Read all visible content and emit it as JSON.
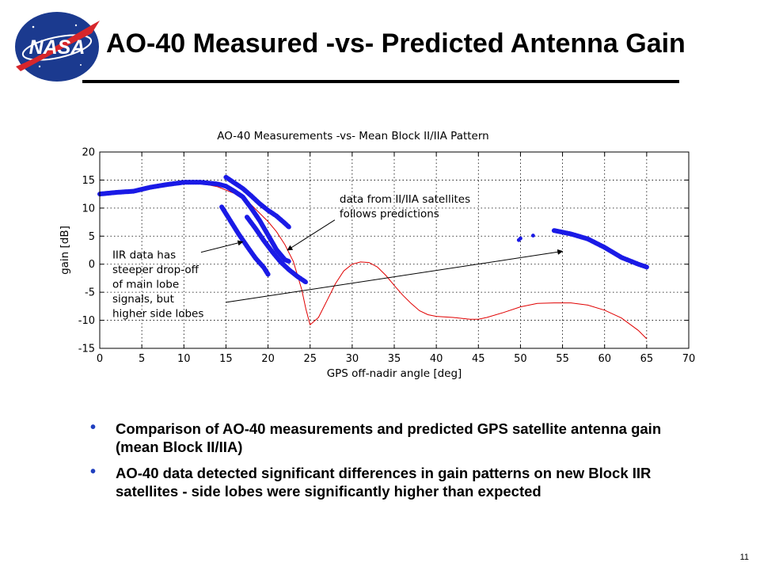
{
  "slide": {
    "logo_text": "NASA",
    "title": "AO-40 Measured -vs- Predicted Antenna Gain",
    "page_number": "11",
    "bullets": [
      "Comparison of AO-40 measurements and predicted GPS satellite antenna gain (mean Block II/IIA)",
      "AO-40 data detected significant differences in gain patterns on new Block IIR satellites - side lobes were significantly higher than expected"
    ],
    "colors": {
      "data": "#1a1ae6",
      "prediction": "#e00000",
      "bullet": "#1f3fbf"
    },
    "icons": {
      "logo": "nasa-meatball-logo"
    }
  },
  "chart_data": {
    "type": "scatter",
    "title": "AO-40 Measurements -vs- Mean Block II/IIA Pattern",
    "xlabel": "GPS off-nadir angle [deg]",
    "ylabel": "gain [dB]",
    "xlim": [
      0,
      70
    ],
    "ylim": [
      -15,
      20
    ],
    "xticks": [
      "0",
      "5",
      "10",
      "15",
      "20",
      "25",
      "30",
      "35",
      "40",
      "45",
      "50",
      "55",
      "60",
      "65",
      "70"
    ],
    "yticks": [
      "20",
      "15",
      "10",
      "5",
      "0",
      "-5",
      "-10",
      "-15"
    ],
    "grid": true,
    "series": [
      {
        "kind": "line",
        "color": "#e00000",
        "points": [
          [
            0,
            12.5
          ],
          [
            2,
            12.8
          ],
          [
            4,
            13.2
          ],
          [
            6,
            13.7
          ],
          [
            8,
            14.2
          ],
          [
            10,
            14.5
          ],
          [
            12,
            14.4
          ],
          [
            14,
            13.8
          ],
          [
            16,
            12.6
          ],
          [
            18,
            10.6
          ],
          [
            20,
            7.6
          ],
          [
            21,
            5.8
          ],
          [
            22,
            3.5
          ],
          [
            23,
            0.5
          ],
          [
            24,
            -4.5
          ],
          [
            24.5,
            -8
          ],
          [
            25,
            -10.8
          ],
          [
            26,
            -9.5
          ],
          [
            27,
            -6.5
          ],
          [
            28,
            -3.5
          ],
          [
            29,
            -1.2
          ],
          [
            30,
            0
          ],
          [
            31,
            0.4
          ],
          [
            32,
            0.3
          ],
          [
            33,
            -0.5
          ],
          [
            34,
            -2
          ],
          [
            35,
            -3.8
          ],
          [
            36,
            -5.5
          ],
          [
            37,
            -7
          ],
          [
            38,
            -8.3
          ],
          [
            39,
            -9
          ],
          [
            40,
            -9.3
          ],
          [
            42,
            -9.5
          ],
          [
            44,
            -9.8
          ],
          [
            45,
            -9.8
          ],
          [
            46,
            -9.5
          ],
          [
            48,
            -8.6
          ],
          [
            50,
            -7.6
          ],
          [
            52,
            -7
          ],
          [
            54,
            -6.9
          ],
          [
            56,
            -6.9
          ],
          [
            58,
            -7.3
          ],
          [
            60,
            -8.2
          ],
          [
            62,
            -9.6
          ],
          [
            64,
            -11.8
          ],
          [
            65,
            -13.3
          ]
        ]
      },
      {
        "kind": "band",
        "color": "#1a1ae6",
        "points": [
          [
            0,
            12.5
          ],
          [
            2,
            12.8
          ],
          [
            4,
            13
          ],
          [
            6,
            13.7
          ],
          [
            8,
            14.2
          ],
          [
            10,
            14.6
          ],
          [
            12,
            14.6
          ],
          [
            14,
            14.3
          ],
          [
            15,
            13.9
          ],
          [
            16,
            13
          ],
          [
            17,
            12
          ],
          [
            18,
            10
          ],
          [
            19,
            7.8
          ],
          [
            20,
            5.2
          ],
          [
            21,
            2.6
          ],
          [
            22,
            0.8
          ],
          [
            22.5,
            0.5
          ]
        ]
      },
      {
        "kind": "band",
        "color": "#1a1ae6",
        "points": [
          [
            15,
            15.5
          ],
          [
            16,
            14.5
          ],
          [
            17,
            13.5
          ],
          [
            18,
            12.2
          ],
          [
            19,
            10.8
          ],
          [
            20,
            9.6
          ],
          [
            21,
            8.6
          ],
          [
            22,
            7.3
          ],
          [
            22.5,
            6.6
          ]
        ]
      },
      {
        "kind": "band",
        "color": "#1a1ae6",
        "points": [
          [
            14.5,
            10.2
          ],
          [
            15.5,
            7.8
          ],
          [
            16.5,
            5.4
          ],
          [
            17.5,
            3.2
          ],
          [
            18.5,
            1.1
          ],
          [
            19.5,
            -0.6
          ],
          [
            20,
            -1.8
          ]
        ]
      },
      {
        "kind": "band",
        "color": "#1a1ae6",
        "points": [
          [
            17.5,
            8.4
          ],
          [
            18.5,
            6.4
          ],
          [
            19.5,
            4.2
          ],
          [
            20.5,
            2.2
          ],
          [
            21.5,
            0.4
          ],
          [
            22.5,
            -1
          ],
          [
            23.5,
            -2.2
          ],
          [
            24.5,
            -3.2
          ]
        ]
      },
      {
        "kind": "band",
        "color": "#1a1ae6",
        "points": [
          [
            54,
            6
          ],
          [
            56,
            5.4
          ],
          [
            58,
            4.5
          ],
          [
            60,
            3
          ],
          [
            62,
            1.2
          ],
          [
            64,
            0
          ],
          [
            65,
            -0.5
          ]
        ]
      },
      {
        "kind": "points",
        "color": "#1a1ae6",
        "points": [
          [
            49.8,
            4.3
          ],
          [
            50,
            4.6
          ],
          [
            51.5,
            5.1
          ]
        ]
      }
    ],
    "annotations": [
      {
        "text": [
          "data from II/IIA satellites",
          "follows predictions"
        ],
        "at": [
          28.5,
          11
        ],
        "arrow_to": [
          22.3,
          2.5
        ]
      },
      {
        "text": [
          "IIR data has",
          "steeper drop-off",
          "of main lobe",
          "signals, but",
          "higher side lobes"
        ],
        "at": [
          1.5,
          1
        ],
        "arrow_to": [
          17,
          4
        ]
      },
      {
        "text": [],
        "at": [
          15,
          -6.8
        ],
        "arrow_to": [
          55,
          2.3
        ]
      }
    ]
  }
}
